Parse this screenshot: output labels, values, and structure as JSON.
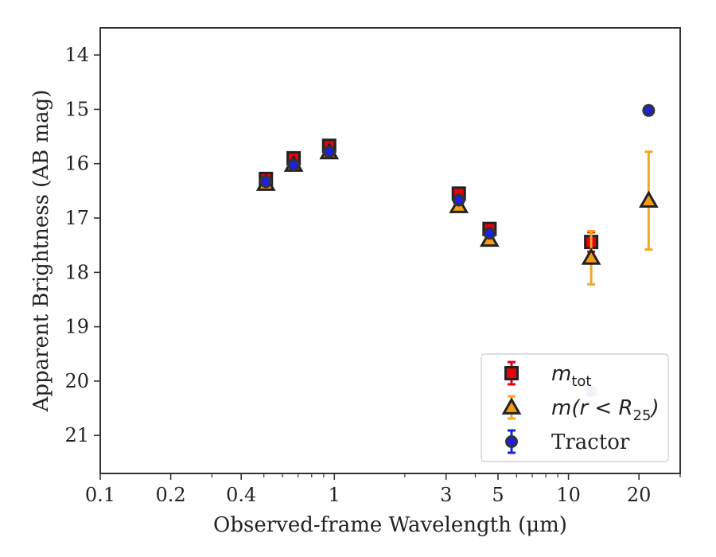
{
  "chart_data": {
    "type": "scatter",
    "title": "",
    "xlabel": "Observed-frame Wavelength (μm)",
    "ylabel": "Apparent Brightness (AB mag)",
    "xscale": "log",
    "xlim": [
      0.1,
      30
    ],
    "ylim": [
      21.7,
      13.5
    ],
    "y_inverted": true,
    "grid": false,
    "legend_position": "lower-right",
    "x_ticks": [
      {
        "value": 0.1,
        "label": "0.1"
      },
      {
        "value": 0.2,
        "label": "0.2"
      },
      {
        "value": 0.4,
        "label": "0.4"
      },
      {
        "value": 1,
        "label": "1"
      },
      {
        "value": 3,
        "label": "3"
      },
      {
        "value": 5,
        "label": "5"
      },
      {
        "value": 10,
        "label": "10"
      },
      {
        "value": 20,
        "label": "20"
      }
    ],
    "x_minor_ticks": [
      0.3,
      0.5,
      0.6,
      0.7,
      0.8,
      0.9,
      2,
      4,
      6,
      7,
      8,
      9,
      30
    ],
    "y_ticks": [
      14,
      15,
      16,
      17,
      18,
      19,
      20,
      21
    ],
    "series": [
      {
        "name": "m_tot",
        "legend_main": "m",
        "legend_sub": "tot",
        "marker": "square",
        "color": "#e8000b",
        "edge": "#222222",
        "errorbar_color": "#e8000b",
        "points": [
          {
            "x": 0.51,
            "y": 16.28,
            "err": 0.05
          },
          {
            "x": 0.67,
            "y": 15.9,
            "err": 0.05
          },
          {
            "x": 0.95,
            "y": 15.67,
            "err": 0.05
          },
          {
            "x": 3.4,
            "y": 16.55,
            "err": 0.06
          },
          {
            "x": 4.6,
            "y": 17.2,
            "err": 0.06
          },
          {
            "x": 12.5,
            "y": 17.44,
            "err": 0.18
          }
        ]
      },
      {
        "name": "m(r < R25)",
        "legend_main": "m(r < R",
        "legend_sub": "25",
        "legend_tail": ")",
        "marker": "triangle",
        "color": "#f39c12",
        "edge": "#222222",
        "errorbar_color": "#f5a623",
        "points": [
          {
            "x": 0.51,
            "y": 16.37,
            "err": 0.05
          },
          {
            "x": 0.67,
            "y": 16.02,
            "err": 0.05
          },
          {
            "x": 0.95,
            "y": 15.79,
            "err": 0.05
          },
          {
            "x": 3.4,
            "y": 16.78,
            "err": 0.06
          },
          {
            "x": 4.6,
            "y": 17.4,
            "err": 0.06
          },
          {
            "x": 12.5,
            "y": 17.73,
            "err": 0.49
          },
          {
            "x": 22.0,
            "y": 16.68,
            "err": 0.9
          }
        ]
      },
      {
        "name": "Tractor",
        "legend_main": "Tractor",
        "marker": "circle",
        "color": "#1f1fe0",
        "edge": "#333333",
        "errorbar_color": "#1f1fe0",
        "points": [
          {
            "x": 0.51,
            "y": 16.33,
            "err": 0.05
          },
          {
            "x": 0.67,
            "y": 16.02,
            "err": 0.05
          },
          {
            "x": 0.95,
            "y": 15.78,
            "err": 0.05
          },
          {
            "x": 3.4,
            "y": 16.67,
            "err": 0.06
          },
          {
            "x": 4.6,
            "y": 17.28,
            "err": 0.06
          },
          {
            "x": 12.5,
            "y": 20.19,
            "err": 0.05,
            "faint": true
          },
          {
            "x": 22.0,
            "y": 15.02,
            "err": 0.08
          }
        ]
      }
    ]
  }
}
